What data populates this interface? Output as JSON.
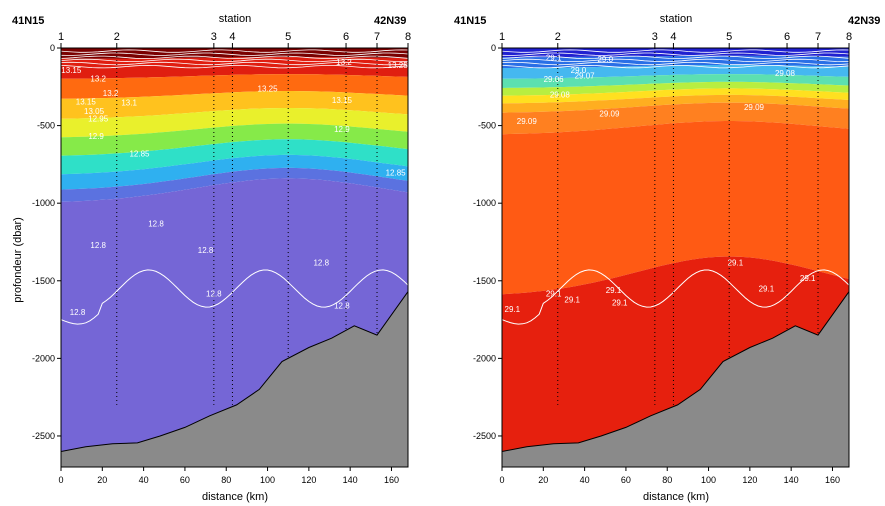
{
  "chart_data": [
    {
      "type": "heatmap",
      "variable": "temperature",
      "left_label": "41N15",
      "right_label": "42N39",
      "top_axis_label": "station",
      "xlabel": "distance (km)",
      "ylabel": "profondeur (dbar)",
      "xlim": [
        0,
        168
      ],
      "ylim": [
        -2700,
        0
      ],
      "x_ticks": [
        0,
        20,
        40,
        60,
        80,
        100,
        120,
        140,
        160
      ],
      "y_ticks": [
        0,
        -500,
        -1000,
        -1500,
        -2000,
        -2500
      ],
      "stations": [
        {
          "label": "1",
          "distance_km": 0
        },
        {
          "label": "2",
          "distance_km": 27
        },
        {
          "label": "3",
          "distance_km": 74
        },
        {
          "label": "4",
          "distance_km": 83
        },
        {
          "label": "5",
          "distance_km": 110
        },
        {
          "label": "6",
          "distance_km": 138
        },
        {
          "label": "7",
          "distance_km": 153
        },
        {
          "label": "8",
          "distance_km": 168
        }
      ],
      "color_levels": [
        {
          "max_depth": 70,
          "color": "#7a0000"
        },
        {
          "max_depth": 200,
          "color": "#e01e10"
        },
        {
          "max_depth": 330,
          "color": "#ff6a10"
        },
        {
          "max_depth": 460,
          "color": "#ffc21e"
        },
        {
          "max_depth": 580,
          "color": "#e9f02c"
        },
        {
          "max_depth": 700,
          "color": "#86ea49"
        },
        {
          "max_depth": 820,
          "color": "#2fe0c8"
        },
        {
          "max_depth": 920,
          "color": "#2fb0f0"
        },
        {
          "max_depth": 1000,
          "color": "#5b72e0"
        },
        {
          "max_depth": 3000,
          "color": "#7566d6"
        }
      ],
      "contour_labels": [
        {
          "text": "13.15",
          "x": 5,
          "depth": 160
        },
        {
          "text": "13.2",
          "x": 18,
          "depth": 215
        },
        {
          "text": "13.2",
          "x": 24,
          "depth": 310
        },
        {
          "text": "13.15",
          "x": 12,
          "depth": 365
        },
        {
          "text": "13.1",
          "x": 33,
          "depth": 370
        },
        {
          "text": "13.05",
          "x": 16,
          "depth": 425
        },
        {
          "text": "12.95",
          "x": 18,
          "depth": 475
        },
        {
          "text": "12.9",
          "x": 17,
          "depth": 585
        },
        {
          "text": "12.85",
          "x": 38,
          "depth": 700
        },
        {
          "text": "13.25",
          "x": 100,
          "depth": 280
        },
        {
          "text": "13.2",
          "x": 137,
          "depth": 110
        },
        {
          "text": "13.25",
          "x": 163,
          "depth": 130
        },
        {
          "text": "13.15",
          "x": 136,
          "depth": 355
        },
        {
          "text": "12.9",
          "x": 136,
          "depth": 540
        },
        {
          "text": "12.85",
          "x": 162,
          "depth": 820
        },
        {
          "text": "12.8",
          "x": 46,
          "depth": 1150
        },
        {
          "text": "12.8",
          "x": 18,
          "depth": 1290
        },
        {
          "text": "12.8",
          "x": 70,
          "depth": 1320
        },
        {
          "text": "12.8",
          "x": 126,
          "depth": 1400
        },
        {
          "text": "12.8",
          "x": 8,
          "depth": 1720
        },
        {
          "text": "12.8",
          "x": 74,
          "depth": 1600
        },
        {
          "text": "12.8",
          "x": 136,
          "depth": 1680
        }
      ],
      "bottom_topography": [
        [
          0,
          -2600
        ],
        [
          12,
          -2570
        ],
        [
          25,
          -2550
        ],
        [
          37,
          -2545
        ],
        [
          48,
          -2500
        ],
        [
          60,
          -2445
        ],
        [
          72,
          -2370
        ],
        [
          85,
          -2300
        ],
        [
          96,
          -2200
        ],
        [
          107,
          -2020
        ],
        [
          120,
          -1930
        ],
        [
          131,
          -1870
        ],
        [
          142,
          -1790
        ],
        [
          153,
          -1850
        ],
        [
          168,
          -1570
        ]
      ]
    },
    {
      "type": "heatmap",
      "variable": "density",
      "left_label": "41N15",
      "right_label": "42N39",
      "top_axis_label": "station",
      "xlabel": "distance (km)",
      "ylabel": "",
      "xlim": [
        0,
        168
      ],
      "ylim": [
        -2700,
        0
      ],
      "x_ticks": [
        0,
        20,
        40,
        60,
        80,
        100,
        120,
        140,
        160
      ],
      "y_ticks": [
        0,
        -500,
        -1000,
        -1500,
        -2000,
        -2500
      ],
      "stations": [
        {
          "label": "1",
          "distance_km": 0
        },
        {
          "label": "2",
          "distance_km": 27
        },
        {
          "label": "3",
          "distance_km": 74
        },
        {
          "label": "4",
          "distance_km": 83
        },
        {
          "label": "5",
          "distance_km": 110
        },
        {
          "label": "6",
          "distance_km": 138
        },
        {
          "label": "7",
          "distance_km": 153
        },
        {
          "label": "8",
          "distance_km": 168
        }
      ],
      "color_levels": [
        {
          "max_depth": 60,
          "color": "#2020d0"
        },
        {
          "max_depth": 130,
          "color": "#2a6fe6"
        },
        {
          "max_depth": 200,
          "color": "#45b8f0"
        },
        {
          "max_depth": 260,
          "color": "#5ce0b0"
        },
        {
          "max_depth": 310,
          "color": "#b8ee40"
        },
        {
          "max_depth": 360,
          "color": "#ffe020"
        },
        {
          "max_depth": 420,
          "color": "#ffae20"
        },
        {
          "max_depth": 560,
          "color": "#ff8020"
        },
        {
          "max_depth": 1600,
          "color": "#ff5a14"
        },
        {
          "max_depth": 3000,
          "color": "#e6200e"
        }
      ],
      "contour_labels": [
        {
          "text": "29.1",
          "x": 25,
          "depth": 80
        },
        {
          "text": "29.0",
          "x": 50,
          "depth": 90
        },
        {
          "text": "29.0",
          "x": 37,
          "depth": 160
        },
        {
          "text": "29.06",
          "x": 25,
          "depth": 220
        },
        {
          "text": "29.07",
          "x": 40,
          "depth": 195
        },
        {
          "text": "29.08",
          "x": 28,
          "depth": 320
        },
        {
          "text": "29.09",
          "x": 12,
          "depth": 490
        },
        {
          "text": "29.09",
          "x": 52,
          "depth": 440
        },
        {
          "text": "29.09",
          "x": 122,
          "depth": 400
        },
        {
          "text": "29.08",
          "x": 137,
          "depth": 180
        },
        {
          "text": "29.1",
          "x": 25,
          "depth": 1600
        },
        {
          "text": "29.1",
          "x": 34,
          "depth": 1640
        },
        {
          "text": "29.1",
          "x": 54,
          "depth": 1580
        },
        {
          "text": "29.1",
          "x": 57,
          "depth": 1660
        },
        {
          "text": "29.1",
          "x": 5,
          "depth": 1700
        },
        {
          "text": "29.1",
          "x": 113,
          "depth": 1400
        },
        {
          "text": "29.1",
          "x": 128,
          "depth": 1570
        },
        {
          "text": "29.1",
          "x": 148,
          "depth": 1500
        }
      ],
      "bottom_topography": [
        [
          0,
          -2600
        ],
        [
          12,
          -2570
        ],
        [
          25,
          -2550
        ],
        [
          37,
          -2545
        ],
        [
          48,
          -2500
        ],
        [
          60,
          -2445
        ],
        [
          72,
          -2370
        ],
        [
          85,
          -2300
        ],
        [
          96,
          -2200
        ],
        [
          107,
          -2020
        ],
        [
          120,
          -1930
        ],
        [
          131,
          -1870
        ],
        [
          142,
          -1790
        ],
        [
          153,
          -1850
        ],
        [
          168,
          -1570
        ]
      ]
    }
  ]
}
